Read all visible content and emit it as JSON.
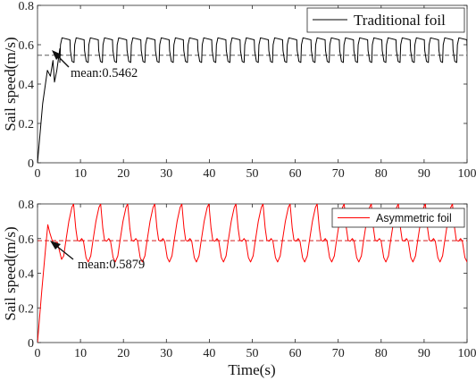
{
  "chart_data": [
    {
      "type": "line",
      "ylabel": "Sail speed(m/s)",
      "xlabel": "",
      "xlim": [
        0,
        100
      ],
      "ylim": [
        0,
        0.8
      ],
      "xticks": [
        0,
        10,
        20,
        30,
        40,
        50,
        60,
        70,
        80,
        90,
        100
      ],
      "yticks": [
        0,
        0.2,
        0.4,
        0.6,
        0.8
      ],
      "xtick_labels": [
        "0",
        "10",
        "20",
        "30",
        "40",
        "50",
        "60",
        "70",
        "80",
        "90",
        "100"
      ],
      "ytick_labels": [
        "0",
        "0.2",
        "0.4",
        "0.6",
        "0.8"
      ],
      "legend_position": "top-right",
      "series": [
        {
          "name": "Traditional foil",
          "color": "#000000",
          "startup": [
            [
              0,
              0
            ],
            [
              1.2,
              0.3
            ],
            [
              2.3,
              0.47
            ],
            [
              3.0,
              0.44
            ],
            [
              3.6,
              0.52
            ],
            [
              3.95,
              0.41
            ],
            [
              4.5,
              0.47
            ],
            [
              5.2,
              0.58
            ]
          ],
          "period": 3.3,
          "periodic_shape": [
            [
              0,
              0.51
            ],
            [
              0.15,
              0.6
            ],
            [
              0.5,
              0.635
            ],
            [
              2.35,
              0.625
            ],
            [
              2.45,
              0.57
            ],
            [
              2.85,
              0.515
            ],
            [
              3.3,
              0.51
            ]
          ],
          "periodic_start": 5.2
        }
      ],
      "mean_line": {
        "value": 0.5462,
        "color": "#444444",
        "style": "dashed"
      },
      "annotation": {
        "text": "mean:0.5462",
        "arrow_target": [
          3.5,
          0.5462
        ]
      }
    },
    {
      "type": "line",
      "ylabel": "Sail speed(m/s)",
      "xlabel": "Time(s)",
      "xlim": [
        0,
        100
      ],
      "ylim": [
        0,
        0.8
      ],
      "xticks": [
        0,
        10,
        20,
        30,
        40,
        50,
        60,
        70,
        80,
        90,
        100
      ],
      "yticks": [
        0,
        0.2,
        0.4,
        0.6,
        0.8
      ],
      "xtick_labels": [
        "0",
        "10",
        "20",
        "30",
        "40",
        "50",
        "60",
        "70",
        "80",
        "90",
        "100"
      ],
      "ytick_labels": [
        "0",
        "0.2",
        "0.4",
        "0.6",
        "0.8"
      ],
      "legend_position": "top-right",
      "series": [
        {
          "name": "Asymmetric foil",
          "color": "#ff0000",
          "startup": [
            [
              0,
              0
            ],
            [
              1.0,
              0.3
            ],
            [
              1.9,
              0.55
            ],
            [
              2.4,
              0.68
            ],
            [
              2.9,
              0.63
            ],
            [
              3.6,
              0.575
            ],
            [
              4.6,
              0.58
            ],
            [
              5.6,
              0.48
            ],
            [
              6.1,
              0.5
            ],
            [
              6.5,
              0.57
            ]
          ],
          "period": 6.3,
          "periodic_shape": [
            [
              0,
              0.57
            ],
            [
              0.8,
              0.7
            ],
            [
              1.5,
              0.78
            ],
            [
              1.9,
              0.8
            ],
            [
              2.4,
              0.66
            ],
            [
              2.8,
              0.59
            ],
            [
              3.3,
              0.585
            ],
            [
              3.8,
              0.6
            ],
            [
              4.2,
              0.585
            ],
            [
              4.8,
              0.49
            ],
            [
              5.3,
              0.465
            ],
            [
              5.9,
              0.5
            ],
            [
              6.3,
              0.57
            ]
          ],
          "periodic_start": 6.5
        }
      ],
      "mean_line": {
        "value": 0.5879,
        "color": "#cc0000",
        "style": "dashed"
      },
      "annotation": {
        "text": "mean:0.5879",
        "arrow_target": [
          3.0,
          0.5879
        ]
      }
    }
  ]
}
